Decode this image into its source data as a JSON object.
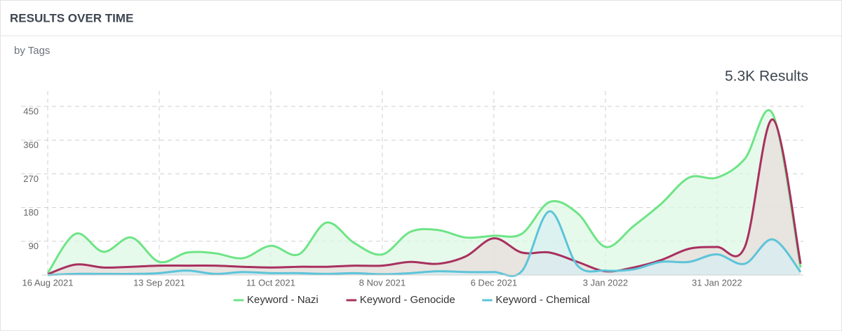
{
  "header": {
    "title": "RESULTS OVER TIME",
    "subtitle": "by Tags"
  },
  "chart_data": {
    "type": "area",
    "title": "5.3K Results",
    "x": [
      "2021-08-16",
      "2021-08-23",
      "2021-08-30",
      "2021-09-06",
      "2021-09-13",
      "2021-09-20",
      "2021-09-27",
      "2021-10-04",
      "2021-10-11",
      "2021-10-18",
      "2021-10-25",
      "2021-11-01",
      "2021-11-08",
      "2021-11-15",
      "2021-11-22",
      "2021-11-29",
      "2021-12-06",
      "2021-12-13",
      "2021-12-20",
      "2021-12-27",
      "2022-01-03",
      "2022-01-10",
      "2022-01-17",
      "2022-01-24",
      "2022-01-31",
      "2022-02-07",
      "2022-02-14",
      "2022-02-21"
    ],
    "series": [
      {
        "name": "Keyword - Nazi",
        "color": "#6ee486",
        "fill": "#dcf8e2",
        "values": [
          5,
          110,
          62,
          100,
          35,
          60,
          58,
          45,
          78,
          55,
          140,
          85,
          55,
          115,
          120,
          100,
          105,
          110,
          195,
          165,
          75,
          130,
          190,
          260,
          260,
          310,
          430,
          20
        ]
      },
      {
        "name": "Keyword - Genocide",
        "color": "#a8305f",
        "fill": "#e8dada",
        "values": [
          2,
          28,
          20,
          22,
          25,
          25,
          25,
          22,
          20,
          22,
          22,
          25,
          25,
          35,
          30,
          50,
          98,
          60,
          60,
          35,
          10,
          20,
          40,
          70,
          75,
          75,
          415,
          30
        ]
      },
      {
        "name": "Keyword - Chemical",
        "color": "#5cc4d9",
        "fill": "#d7eef3",
        "values": [
          0,
          3,
          3,
          3,
          5,
          12,
          3,
          8,
          5,
          5,
          3,
          5,
          2,
          5,
          10,
          8,
          8,
          10,
          170,
          25,
          12,
          15,
          35,
          35,
          55,
          30,
          95,
          8
        ]
      }
    ],
    "xlim": [
      "2021-08-16",
      "2022-02-21"
    ],
    "xticks": [
      {
        "value": "2021-08-16",
        "label": "16 Aug 2021"
      },
      {
        "value": "2021-09-13",
        "label": "13 Sep 2021"
      },
      {
        "value": "2021-10-11",
        "label": "11 Oct 2021"
      },
      {
        "value": "2021-11-08",
        "label": "8 Nov 2021"
      },
      {
        "value": "2021-12-06",
        "label": "6 Dec 2021"
      },
      {
        "value": "2022-01-03",
        "label": "3 Jan 2022"
      },
      {
        "value": "2022-01-31",
        "label": "31 Jan 2022"
      }
    ],
    "ylim": [
      0,
      450
    ],
    "yticks": [
      90,
      180,
      270,
      360,
      450
    ],
    "grid": true,
    "legend": "bottom"
  }
}
